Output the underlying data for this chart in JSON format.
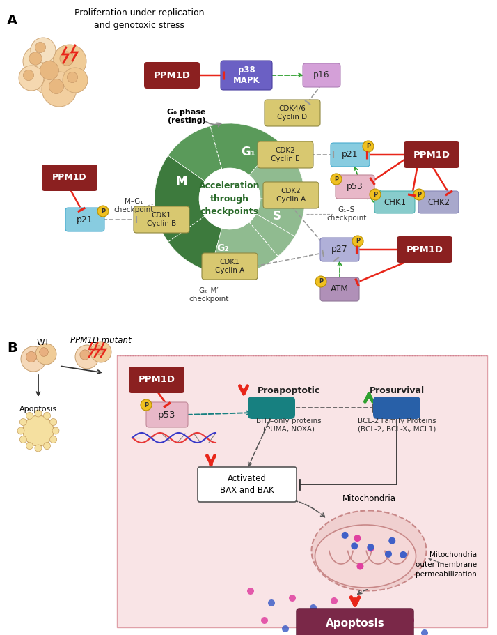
{
  "fig_width": 7.14,
  "fig_height": 9.11,
  "bg_color": "#ffffff",
  "panel_b_bg": "#f9e4e6",
  "ppm1d_color": "#8b2020",
  "ppm1d_text": "PPM1D",
  "p38_color": "#5b4fa0",
  "p38_text": "p38\nMAPK",
  "p16_color": "#d4a0d4",
  "p16_text": "p16",
  "cdk46_text": "CDK4/6\nCyclin D",
  "cdk2e_text": "CDK2\nCyclin E",
  "cdk2a_text": "CDK2\nCyclin A",
  "cdk1b_text": "CDK1\nCyclin B",
  "cdk1a_text": "CDK1\nCyclin A",
  "p21_color": "#88cce0",
  "p21_text": "p21",
  "p27_color": "#b0b0d8",
  "p27_text": "p27",
  "p53_color": "#e8b8c8",
  "p53_text": "p53",
  "chk1_color": "#88cccc",
  "chk1_text": "CHK1",
  "chk2_color": "#a8a8cc",
  "chk2_text": "CHK2",
  "atm_color": "#b090b8",
  "atm_text": "ATM",
  "cdk_yellow": "#d8c870",
  "cdk_edge": "#908840",
  "phospho_color": "#f0c020",
  "red_inh": "#e8261a",
  "green_act": "#30a030",
  "gray_inh": "#999999",
  "cycle_dark": "#3d7a3d",
  "cycle_med": "#5a9a5a",
  "cycle_light": "#90bb90",
  "cycle_pale": "#c0d8b8",
  "cycle_text": "Acceleration\nthrough\ncheckpoints",
  "proapoptotic_color": "#178080",
  "prosurvival_color": "#2860a8",
  "apoptosis_color": "#7a2848"
}
